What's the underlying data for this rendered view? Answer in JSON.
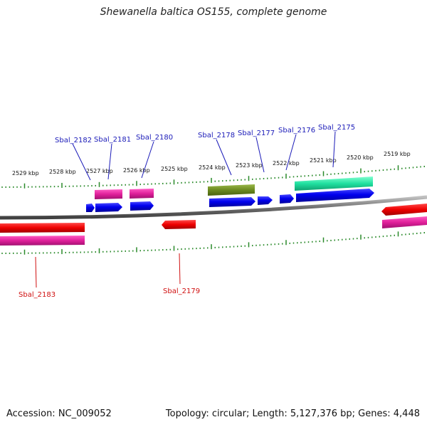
{
  "title": "Shewanella baltica OS155, complete genome",
  "footer": {
    "accession": "Accession: NC_009052",
    "summary": "Topology: circular; Length: 5,127,376 bp; Genes: 4,448"
  },
  "colors": {
    "backbone": "#808080",
    "tick": "#2a8a2a",
    "cds": "#0000ee",
    "rna_pink": "#e0209a",
    "olive": "#6b8a20",
    "teal": "#20e0a0",
    "red": "#ee0000",
    "label_blue": "#1a1ab8",
    "label_red": "#d01010"
  },
  "ruler_labels": [
    "2529 kbp",
    "2528 kbp",
    "2527 kbp",
    "2526 kbp",
    "2525 kbp",
    "2524 kbp",
    "2523 kbp",
    "2522 kbp",
    "2521 kbp",
    "2520 kbp",
    "2519 kbp"
  ],
  "gene_labels_top": [
    "Sbal_2182",
    "Sbal_2181",
    "Sbal_2180",
    "Sbal_2178",
    "Sbal_2177",
    "Sbal_2176",
    "Sbal_2175"
  ],
  "gene_labels_bottom": [
    "Sbal_2183",
    "Sbal_2179"
  ]
}
